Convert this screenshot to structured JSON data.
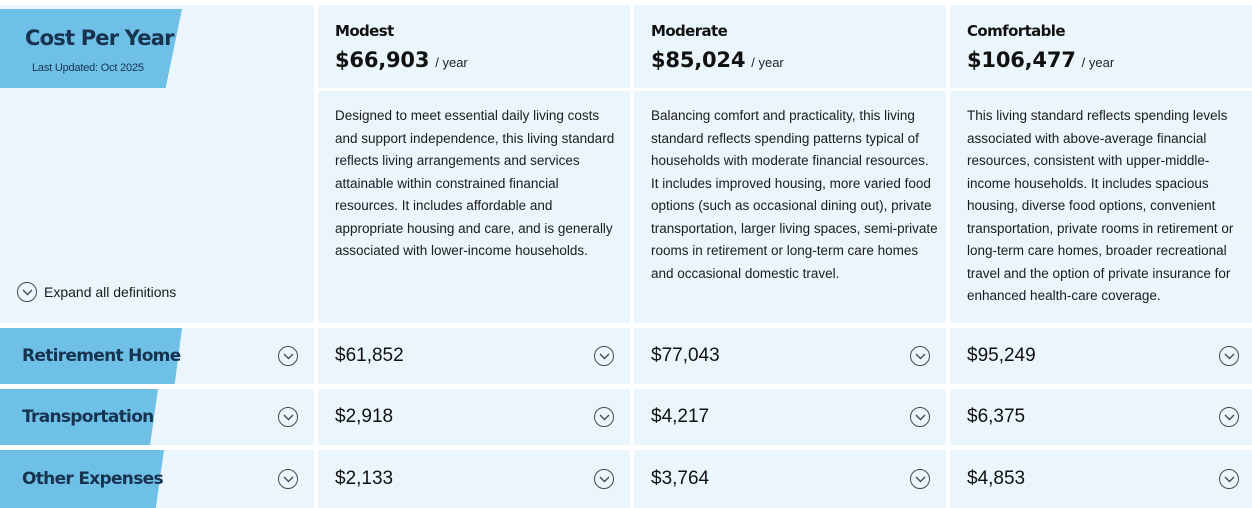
{
  "header": {
    "title": "Cost Per Year",
    "updated": "Last Updated: Oct 2025",
    "expand_all_label": "Expand all definitions"
  },
  "plans": [
    {
      "name": "Modest",
      "price": "$66,903",
      "per": "/ year",
      "description": "Designed to meet essential daily living costs and support independence, this living standard reflects living arrangements and services attainable within constrained financial resources. It includes affordable and appropriate housing and care, and is generally associated with lower-income households."
    },
    {
      "name": "Moderate",
      "price": "$85,024",
      "per": "/ year",
      "description": "Balancing comfort and practicality, this living standard reflects spending patterns typical of households with moderate financial resources. It includes improved housing, more varied food options (such as occasional dining out), private transportation, larger living spaces, semi-private rooms in retirement or long-term care homes and occasional domestic travel."
    },
    {
      "name": "Comfortable",
      "price": "$106,477",
      "per": "/ year",
      "description": "This living standard reflects spending levels associated with above-average financial resources, consistent with upper-middle-income households. It includes spacious housing, diverse food options, convenient transportation, private rooms in retirement or long-term care homes, broader recreational travel and the option of private insurance for enhanced health-care coverage."
    }
  ],
  "rows": [
    {
      "label": "Retirement Home",
      "values": [
        "$61,852",
        "$77,043",
        "$95,249"
      ]
    },
    {
      "label": "Transportation",
      "values": [
        "$2,918",
        "$4,217",
        "$6,375"
      ]
    },
    {
      "label": "Other Expenses",
      "values": [
        "$2,133",
        "$3,764",
        "$4,853"
      ]
    }
  ],
  "colors": {
    "accent": "#6ec0e6",
    "panel": "#eaf6fc",
    "label_text": "#17334f"
  },
  "icons": {
    "expand": "chevron-down-circle-icon"
  }
}
